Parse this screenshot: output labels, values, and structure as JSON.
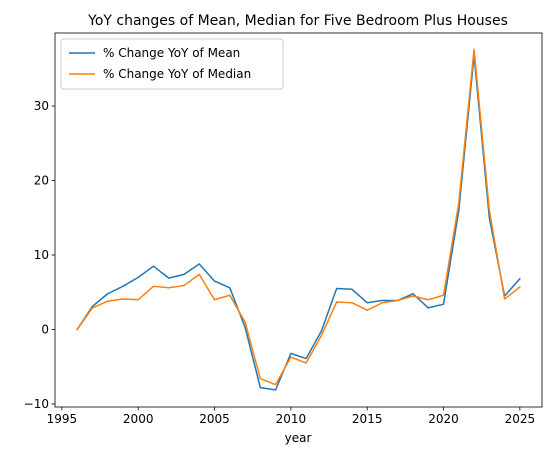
{
  "chart_data": {
    "type": "line",
    "title": "YoY changes of Mean, Median for Five Bedroom Plus Houses",
    "xlabel": "year",
    "ylabel": "",
    "xlim": [
      1994.55,
      2026.45
    ],
    "ylim": [
      -10.4,
      39.8
    ],
    "xticks": [
      1995,
      2000,
      2005,
      2010,
      2015,
      2020,
      2025
    ],
    "yticks": [
      -10,
      0,
      10,
      20,
      30
    ],
    "grid": false,
    "legend_position": "top-left",
    "x": [
      1996,
      1997,
      1998,
      1999,
      2000,
      2001,
      2002,
      2003,
      2004,
      2005,
      2006,
      2007,
      2008,
      2009,
      2010,
      2011,
      2012,
      2013,
      2014,
      2015,
      2016,
      2017,
      2018,
      2019,
      2020,
      2021,
      2022,
      2023,
      2024,
      2025
    ],
    "series": [
      {
        "name": "% Change YoY of Mean",
        "color": "#1f77b4",
        "values": [
          0.0,
          3.1,
          4.8,
          5.8,
          7.0,
          8.5,
          6.9,
          7.4,
          8.8,
          6.5,
          5.6,
          0.3,
          -7.8,
          -8.1,
          -3.2,
          -3.9,
          -0.2,
          5.5,
          5.4,
          3.6,
          3.9,
          3.9,
          4.8,
          2.9,
          3.4,
          16.0,
          36.8,
          15.0,
          4.5,
          6.8
        ]
      },
      {
        "name": "% Change YoY of Median",
        "color": "#ff7f0e",
        "values": [
          0.0,
          2.9,
          3.8,
          4.1,
          4.0,
          5.8,
          5.6,
          5.9,
          7.4,
          4.0,
          4.6,
          1.0,
          -6.6,
          -7.4,
          -3.7,
          -4.5,
          -0.8,
          3.7,
          3.6,
          2.6,
          3.6,
          3.9,
          4.5,
          4.0,
          4.6,
          17.0,
          37.6,
          16.0,
          4.1,
          5.7
        ]
      }
    ]
  }
}
